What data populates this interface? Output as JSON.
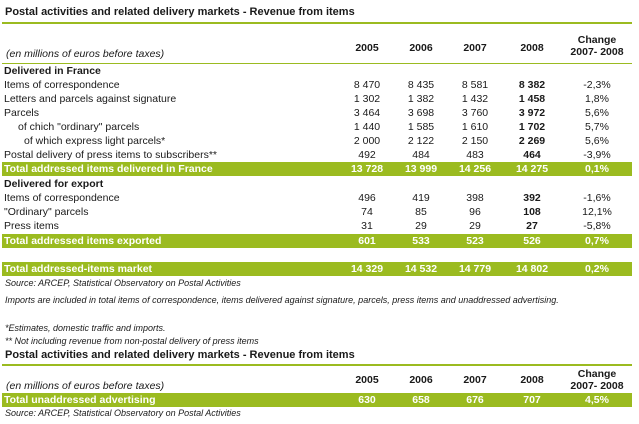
{
  "table1": {
    "title": "Postal activities and related delivery markets - Revenue from items",
    "unit_note": "(en millions of euros before taxes)",
    "years": [
      "2005",
      "2006",
      "2007",
      "2008"
    ],
    "change_line1": "Change",
    "change_line2": "2007- 2008",
    "sections": {
      "france": "Delivered in France",
      "export": "Delivered for export"
    },
    "rows": [
      {
        "label": "Items of correspondence",
        "v": [
          "8 470",
          "8 435",
          "8 581",
          "8 382"
        ],
        "c": "-2,3%"
      },
      {
        "label": "Letters and parcels against signature",
        "v": [
          "1 302",
          "1 382",
          "1 432",
          "1 458"
        ],
        "c": "1,8%"
      },
      {
        "label": "Parcels",
        "v": [
          "3 464",
          "3 698",
          "3 760",
          "3 972"
        ],
        "c": "5,6%"
      },
      {
        "label": "of chich \"ordinary\" parcels",
        "v": [
          "1 440",
          "1 585",
          "1 610",
          "1 702"
        ],
        "c": "5,7%"
      },
      {
        "label": "of which express light parcels*",
        "v": [
          "2 000",
          "2 122",
          "2 150",
          "2 269"
        ],
        "c": "5,6%"
      },
      {
        "label": "Postal delivery of press items to subscribers**",
        "v": [
          "492",
          "484",
          "483",
          "464"
        ],
        "c": "-3,9%"
      },
      {
        "label": "Total addressed items delivered in France",
        "v": [
          "13 728",
          "13 999",
          "14 256",
          "14 275"
        ],
        "c": "0,1%"
      },
      {
        "label": "Items of correspondence",
        "v": [
          "496",
          "419",
          "398",
          "392"
        ],
        "c": "-1,6%"
      },
      {
        "label": "\"Ordinary\" parcels",
        "v": [
          "74",
          "85",
          "96",
          "108"
        ],
        "c": "12,1%"
      },
      {
        "label": "Press items",
        "v": [
          "31",
          "29",
          "29",
          "27"
        ],
        "c": "-5,8%"
      },
      {
        "label": "Total addressed items exported",
        "v": [
          "601",
          "533",
          "523",
          "526"
        ],
        "c": "0,7%"
      },
      {
        "label": "Total addressed-items market",
        "v": [
          "14 329",
          "14 532",
          "14 779",
          "14 802"
        ],
        "c": "0,2%"
      }
    ],
    "notes": [
      "Source: ARCEP, Statistical Observatory on Postal Activities",
      "Imports are included in total items of correspondence, items delivered against signature, parcels, press items and unaddressed advertising.",
      "*Estimates, domestic traffic and imports.",
      "** Not including revenue from non-postal delivery of press items"
    ]
  },
  "table2": {
    "title": "Postal activities and related delivery markets - Revenue from items",
    "unit_note": "(en millions of euros before taxes)",
    "years": [
      "2005",
      "2006",
      "2007",
      "2008"
    ],
    "change_line1": "Change",
    "change_line2": "2007- 2008",
    "row": {
      "label": "Total unaddressed advertising",
      "v": [
        "630",
        "658",
        "676",
        "707"
      ],
      "c": "4,5%"
    },
    "source": "Source: ARCEP, Statistical Observatory on Postal Activities"
  },
  "colors": {
    "accent": "#9bbb20",
    "total_text": "#ffffff"
  }
}
